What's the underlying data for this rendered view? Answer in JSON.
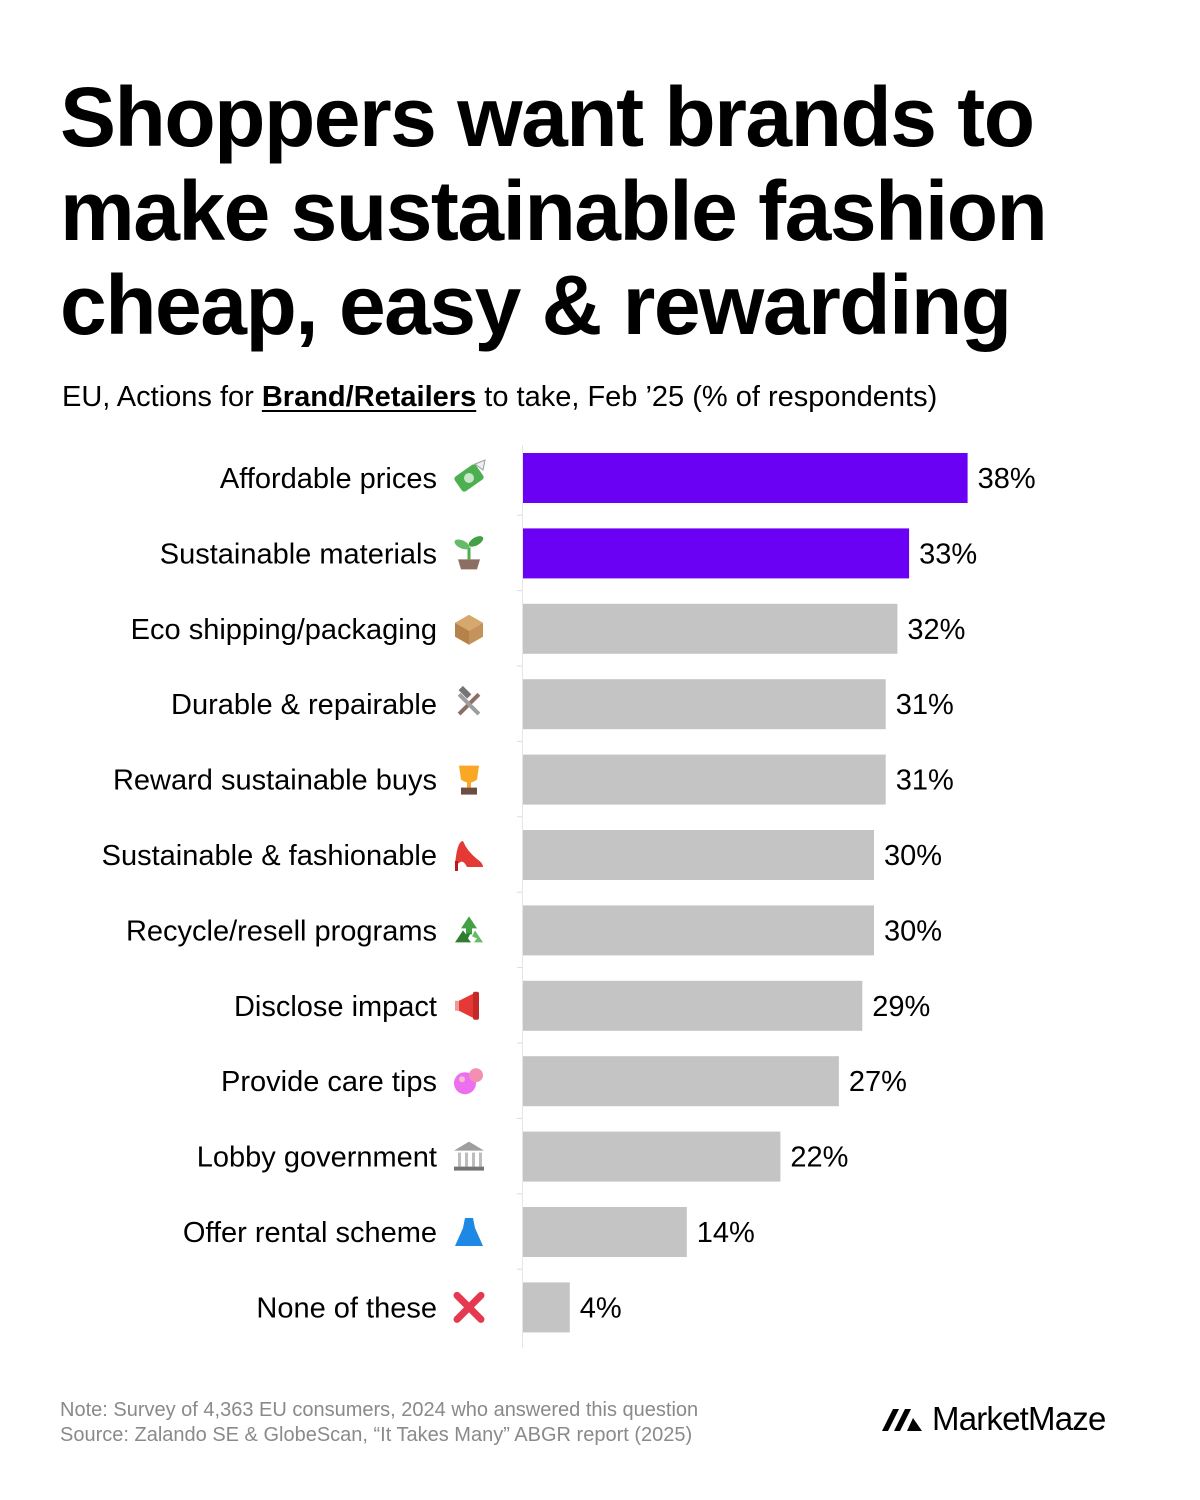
{
  "title_lines": [
    "Shoppers want brands to",
    "make sustainable fashion",
    "cheap, easy & rewarding"
  ],
  "subtitle": {
    "before": "EU, Actions for ",
    "emphasis": "Brand/Retailers",
    "after": " to take, Feb ’25 (% of respondents)"
  },
  "colors": {
    "highlight": "#6a00f4",
    "muted": "#c4c4c4",
    "note": "#8a8a8a"
  },
  "chart_data": {
    "type": "bar",
    "orientation": "horizontal",
    "categories": [
      "Affordable prices",
      "Sustainable materials",
      "Eco shipping/packaging",
      "Durable & repairable",
      "Reward sustainable buys",
      "Sustainable & fashionable",
      "Recycle/resell programs",
      "Disclose impact",
      "Provide care tips",
      "Lobby government",
      "Offer rental scheme",
      "None of these"
    ],
    "icons": [
      "money-with-wings-icon",
      "seedling-icon",
      "package-icon",
      "hammer-and-wrench-icon",
      "trophy-icon",
      "high-heel-icon",
      "recycling-icon",
      "megaphone-icon",
      "sponge-icon",
      "classical-building-icon",
      "dress-icon",
      "cross-mark-icon"
    ],
    "values": [
      38,
      33,
      32,
      31,
      31,
      30,
      30,
      29,
      27,
      22,
      14,
      4
    ],
    "value_labels": [
      "38%",
      "33%",
      "32%",
      "31%",
      "31%",
      "30%",
      "30%",
      "29%",
      "27%",
      "22%",
      "14%",
      "4%"
    ],
    "highlighted": [
      true,
      true,
      false,
      false,
      false,
      false,
      false,
      false,
      false,
      false,
      false,
      false
    ],
    "unit": "%"
  },
  "note": "Note: Survey of 4,363 EU consumers, 2024 who answered this question",
  "source": "Source: Zalando SE & GlobeScan, “It Takes Many” ABGR report (2025)",
  "brand": "MarketMaze"
}
